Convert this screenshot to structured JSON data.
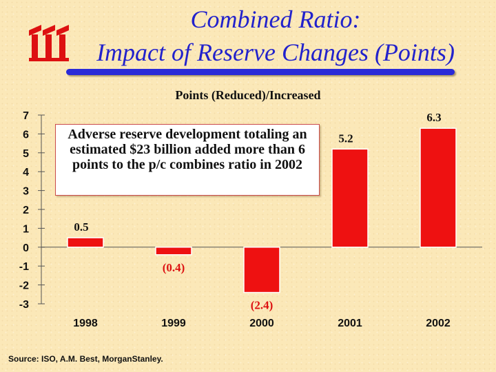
{
  "header": {
    "title_line1": "Combined Ratio:",
    "title_line2": "Impact of Reserve Changes (Points)",
    "logo_icon": "iii-logo",
    "title_color": "#2222cc",
    "rule_color": "#2a2ad8"
  },
  "annotation": {
    "text": "Adverse reserve development totaling an estimated $23 billion added more than 6 points to the p/c combines ratio in 2002"
  },
  "footer": {
    "source": "Source: ISO, A.M. Best, MorganStanley."
  },
  "chart_data": {
    "type": "bar",
    "title": "Points (Reduced)/Increased",
    "categories": [
      "1998",
      "1999",
      "2000",
      "2001",
      "2002"
    ],
    "values": [
      0.5,
      -0.4,
      -2.4,
      5.2,
      6.3
    ],
    "value_labels": [
      "0.5",
      "(0.4)",
      "(2.4)",
      "5.2",
      "6.3"
    ],
    "label_colors": [
      "#111111",
      "#dd1111",
      "#dd1111",
      "#111111",
      "#111111"
    ],
    "ylim": [
      -3,
      7
    ],
    "yticks": [
      7,
      6,
      5,
      4,
      3,
      2,
      1,
      0,
      -1,
      -2,
      -3
    ],
    "ytick_labels": [
      "7",
      "6",
      "5",
      "4",
      "3",
      "2",
      "1",
      "0",
      "-1",
      "-2",
      "-3"
    ],
    "bar_color": "#ee1111",
    "xlabel": "",
    "ylabel": "",
    "grid": false
  }
}
